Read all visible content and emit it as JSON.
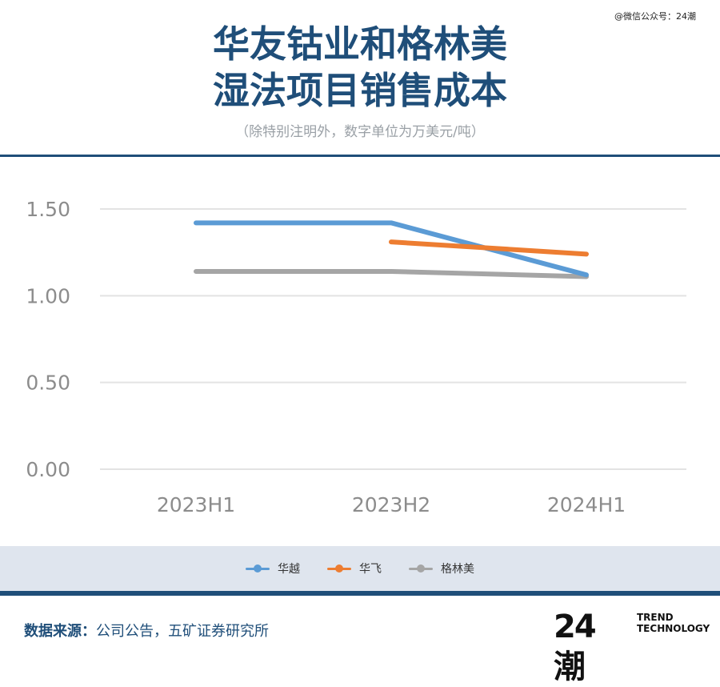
{
  "watermark": "@微信公众号：24潮",
  "title_line1": "华友钴业和格林美",
  "title_line2": "湿法项目销售成本",
  "subtitle": "（除特别注明外，数字单位为万美元/吨）",
  "source": {
    "label": "数据来源：",
    "text": "公司公告，五矿证券研究所"
  },
  "logo": {
    "main": "24潮",
    "sub_line1": "TREND",
    "sub_line2": "TECHNOLOGY"
  },
  "chart_data": {
    "type": "line",
    "categories": [
      "2023H1",
      "2023H2",
      "2024H1"
    ],
    "y_ticks": [
      "0.00",
      "0.50",
      "1.00",
      "1.50"
    ],
    "ylim": [
      0,
      1.5
    ],
    "grid": true,
    "legend_position": "bottom",
    "series": [
      {
        "name": "华越",
        "color": "#5b9bd5",
        "values": [
          1.42,
          1.42,
          1.12
        ]
      },
      {
        "name": "华飞",
        "color": "#ed7d31",
        "values": [
          null,
          1.31,
          1.24
        ]
      },
      {
        "name": "格林美",
        "color": "#a5a5a5",
        "values": [
          1.14,
          1.14,
          1.11
        ]
      }
    ]
  }
}
